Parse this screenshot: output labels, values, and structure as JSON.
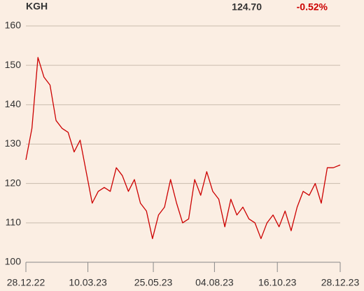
{
  "chart_data": {
    "type": "line",
    "title": "KGH",
    "last_price": "124.70",
    "change": "-0.52%",
    "change_color": "#cc0000",
    "x": [
      "2022-12-28",
      "2023-01-04",
      "2023-01-11",
      "2023-01-18",
      "2023-01-25",
      "2023-02-01",
      "2023-02-08",
      "2023-02-15",
      "2023-02-22",
      "2023-03-01",
      "2023-03-08",
      "2023-03-15",
      "2023-03-22",
      "2023-03-29",
      "2023-04-05",
      "2023-04-12",
      "2023-04-19",
      "2023-04-26",
      "2023-05-03",
      "2023-05-10",
      "2023-05-17",
      "2023-05-24",
      "2023-05-31",
      "2023-06-07",
      "2023-06-14",
      "2023-06-21",
      "2023-06-28",
      "2023-07-05",
      "2023-07-12",
      "2023-07-19",
      "2023-07-26",
      "2023-08-02",
      "2023-08-09",
      "2023-08-16",
      "2023-08-23",
      "2023-08-30",
      "2023-09-06",
      "2023-09-13",
      "2023-09-20",
      "2023-09-27",
      "2023-10-04",
      "2023-10-11",
      "2023-10-18",
      "2023-10-25",
      "2023-11-01",
      "2023-11-08",
      "2023-11-15",
      "2023-11-22",
      "2023-11-29",
      "2023-12-06",
      "2023-12-13",
      "2023-12-20",
      "2023-12-28"
    ],
    "series": [
      {
        "name": "KGH",
        "color": "#cc0000",
        "values": [
          126,
          134,
          152,
          147,
          145,
          136,
          134,
          133,
          128,
          131,
          123,
          115,
          118,
          119,
          118,
          124,
          122,
          118,
          121,
          115,
          113,
          106,
          112,
          114,
          121,
          115,
          110,
          111,
          121,
          117,
          123,
          118,
          116,
          109,
          116,
          112,
          114,
          111,
          110,
          106,
          110,
          112,
          109,
          113,
          108,
          114,
          118,
          117,
          120,
          115,
          124,
          124,
          124.7
        ]
      }
    ],
    "xlim": [
      "2022-12-28",
      "2023-12-28"
    ],
    "xticks": [
      {
        "value": "2022-12-28",
        "label": "28.12.22"
      },
      {
        "value": "2023-03-10",
        "label": "10.03.23"
      },
      {
        "value": "2023-05-25",
        "label": "25.05.23"
      },
      {
        "value": "2023-08-04",
        "label": "04.08.23"
      },
      {
        "value": "2023-10-16",
        "label": "16.10.23"
      },
      {
        "value": "2023-12-28",
        "label": "28.12.23"
      }
    ],
    "ylim": [
      100,
      160
    ],
    "yticks": [
      100,
      110,
      120,
      130,
      140,
      150,
      160
    ],
    "grid": true
  }
}
